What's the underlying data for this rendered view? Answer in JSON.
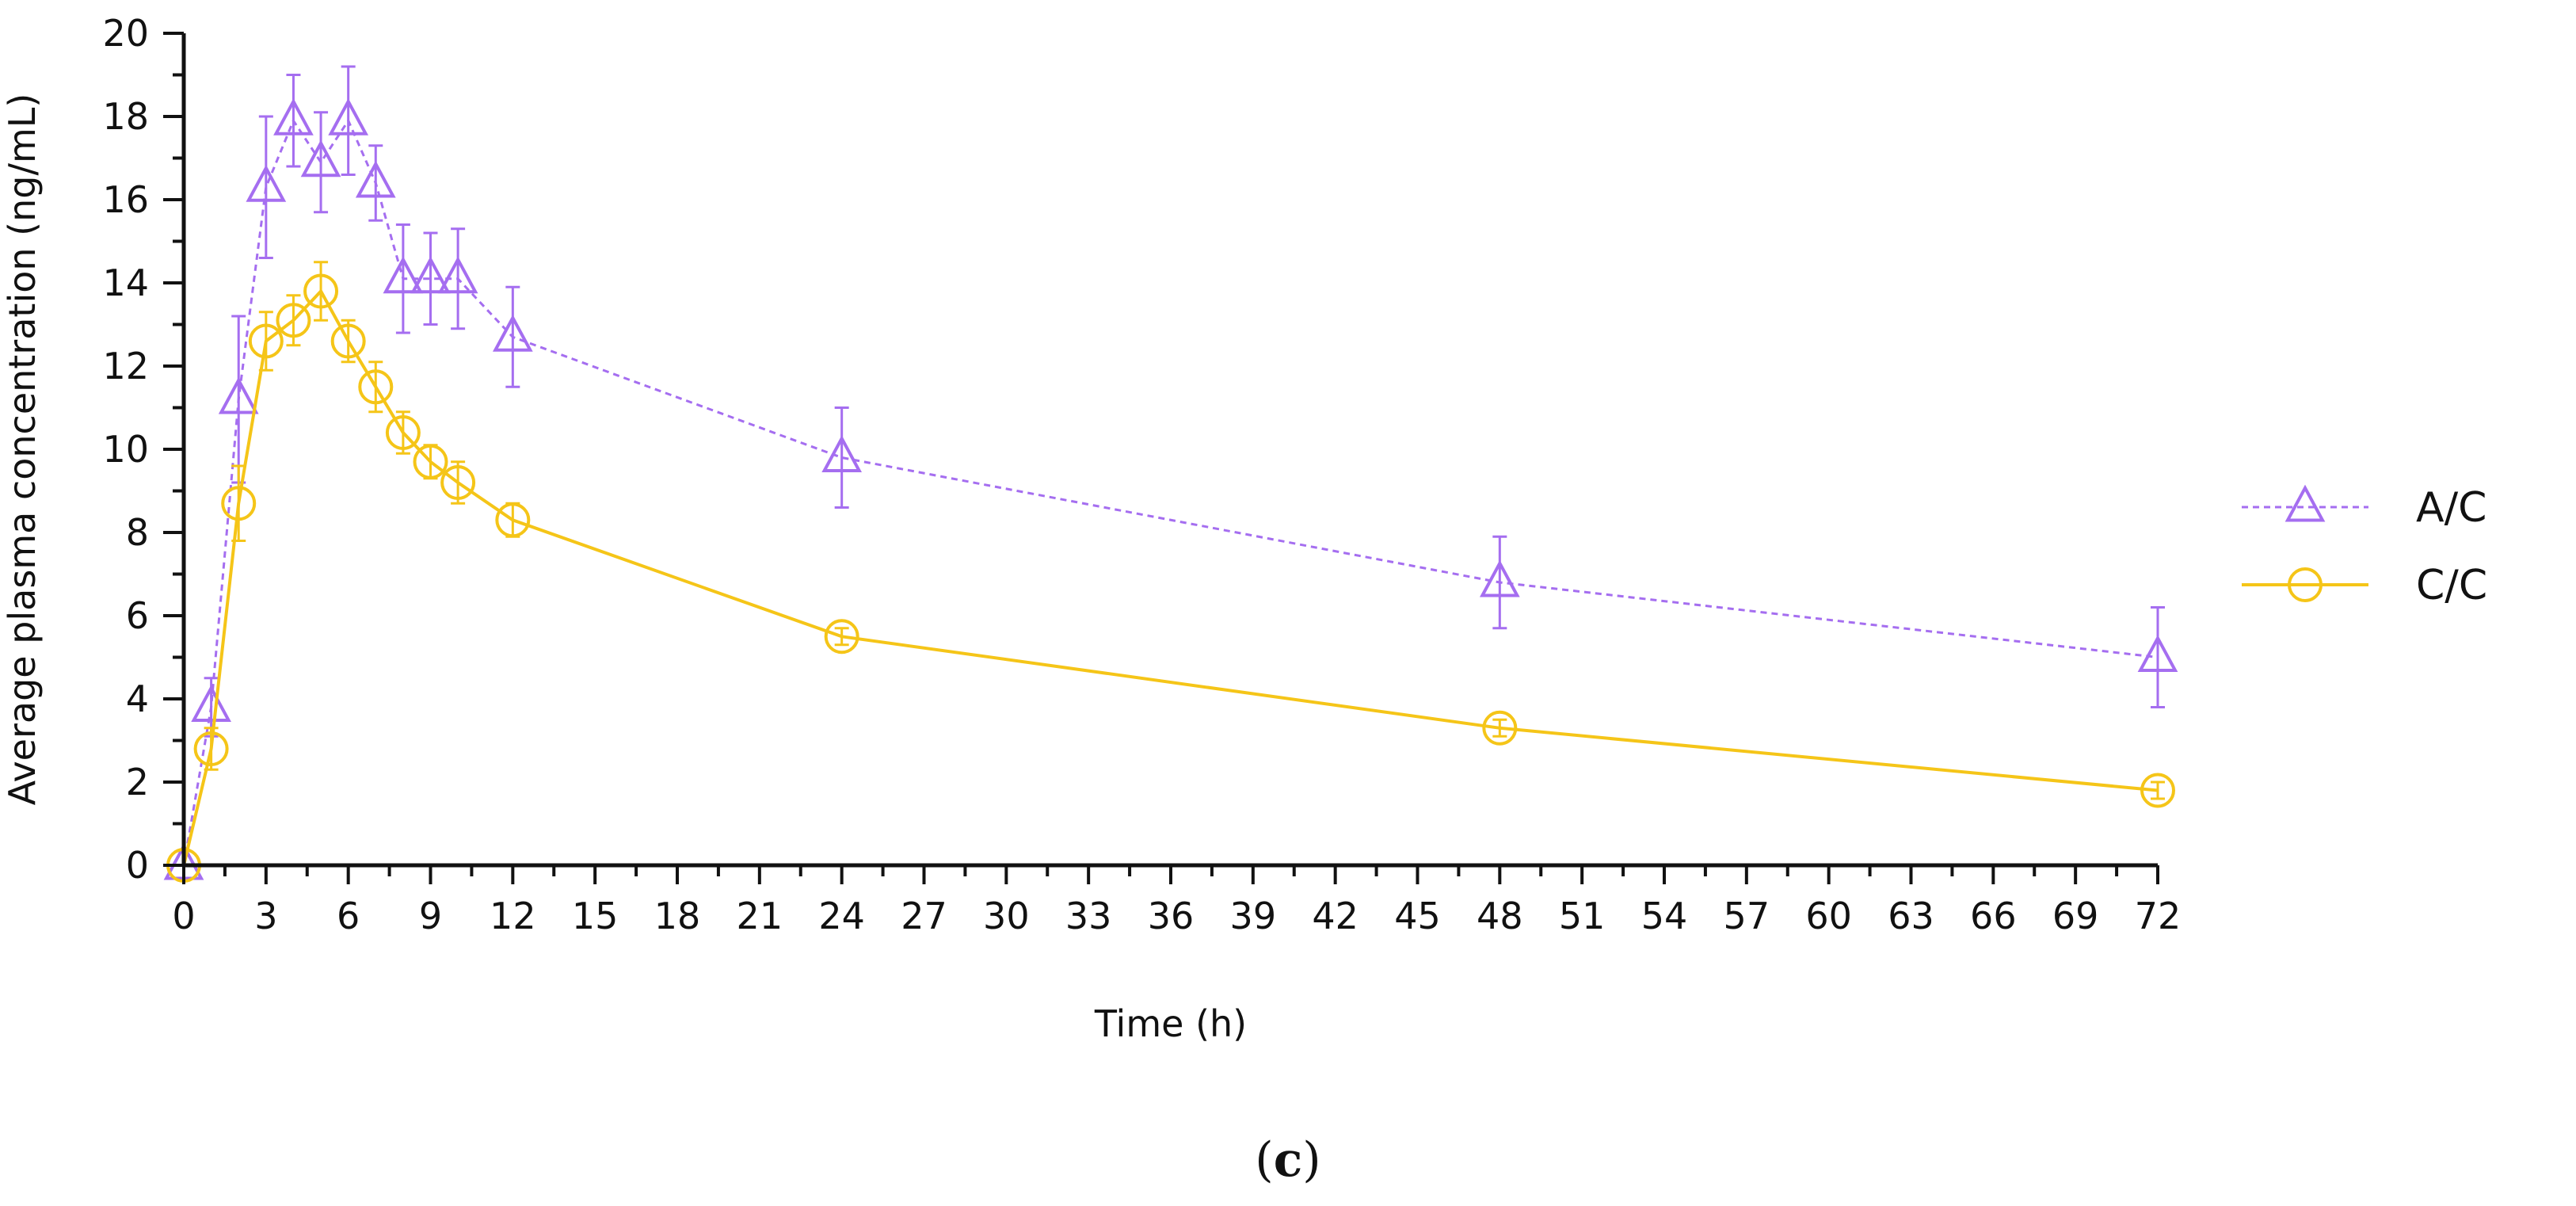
{
  "chart_data": {
    "type": "line",
    "xlabel": "Time (h)",
    "ylabel": "Average plasma concentration (ng/mL)",
    "xlim": [
      0,
      72
    ],
    "ylim": [
      0,
      20
    ],
    "x_ticks": [
      0,
      3,
      6,
      9,
      12,
      15,
      18,
      21,
      24,
      27,
      30,
      33,
      36,
      39,
      42,
      45,
      48,
      51,
      54,
      57,
      60,
      63,
      66,
      69,
      72
    ],
    "x_minor_step": 1.5,
    "y_ticks": [
      0,
      2,
      4,
      6,
      8,
      10,
      12,
      14,
      16,
      18,
      20
    ],
    "y_minor_step": 1,
    "grid": false,
    "legend_position": "right",
    "series": [
      {
        "name": "A/C",
        "color": "#a56ef0",
        "marker": "triangle",
        "line_style": "dashed",
        "x": [
          0,
          1,
          2,
          3,
          4,
          5,
          6,
          7,
          8,
          9,
          10,
          12,
          24,
          48,
          72
        ],
        "values": [
          0,
          3.8,
          11.2,
          16.3,
          17.9,
          16.9,
          17.9,
          16.4,
          14.1,
          14.1,
          14.1,
          12.7,
          9.8,
          6.8,
          5.0
        ],
        "error": [
          0,
          0.7,
          2.0,
          1.7,
          1.1,
          1.2,
          1.3,
          0.9,
          1.3,
          1.1,
          1.2,
          1.2,
          1.2,
          1.1,
          1.2
        ]
      },
      {
        "name": "C/C",
        "color": "#f5c518",
        "marker": "circle",
        "line_style": "solid",
        "x": [
          0,
          1,
          2,
          3,
          4,
          5,
          6,
          7,
          8,
          9,
          10,
          12,
          24,
          48,
          72
        ],
        "values": [
          0,
          2.8,
          8.7,
          12.6,
          13.1,
          13.8,
          12.6,
          11.5,
          10.4,
          9.7,
          9.2,
          8.3,
          5.5,
          3.3,
          1.8
        ],
        "error": [
          0,
          0.5,
          0.9,
          0.7,
          0.6,
          0.7,
          0.5,
          0.6,
          0.5,
          0.4,
          0.5,
          0.4,
          0.2,
          0.2,
          0.2
        ]
      }
    ]
  },
  "caption": {
    "open": "(",
    "letter": "c",
    "close": ")"
  }
}
